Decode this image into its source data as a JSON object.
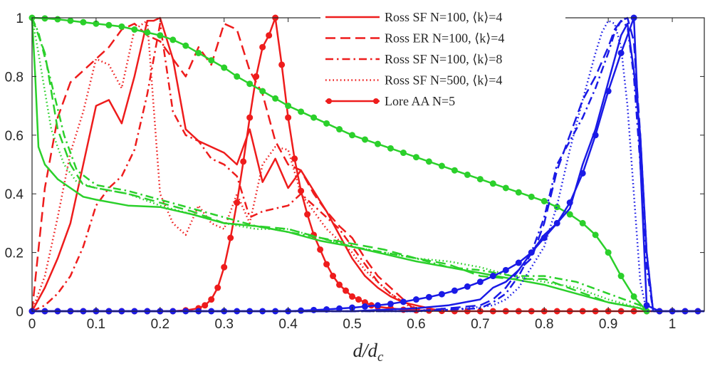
{
  "chart_data": {
    "type": "line",
    "title": "",
    "xlabel": "d/d_c",
    "ylabel": "",
    "xlim": [
      0,
      1.05
    ],
    "ylim": [
      0,
      1
    ],
    "xticks": [
      0,
      0.1,
      0.2,
      0.3,
      0.4,
      0.5,
      0.6,
      0.7,
      0.8,
      0.9,
      1
    ],
    "xtick_labels": [
      "0",
      "0.1",
      "0.2",
      "0.3",
      "0.4",
      "0.5",
      "0.6",
      "0.7",
      "0.8",
      "0.9",
      "1"
    ],
    "yticks": [
      0,
      0.2,
      0.4,
      0.6,
      0.8,
      1
    ],
    "ytick_labels": [
      "0",
      "0.2",
      "0.4",
      "0.6",
      "0.8",
      "1"
    ],
    "legend_position": "top-right",
    "colors": {
      "red": "#ee1c1c",
      "green": "#2bd02b",
      "blue": "#1a1ae6",
      "axis": "#262626"
    },
    "legend": [
      {
        "label": "Ross SF N=100, ⟨k⟩=4",
        "style": "solid",
        "marker": false
      },
      {
        "label": "Ross ER N=100, ⟨k⟩=4",
        "style": "dashed",
        "marker": false
      },
      {
        "label": "Ross SF N=100, ⟨k⟩=8",
        "style": "dashdot",
        "marker": false
      },
      {
        "label": "Ross SF N=500, ⟨k⟩=4",
        "style": "dotted",
        "marker": false
      },
      {
        "label": "Lore AA N=5",
        "style": "solid",
        "marker": true
      }
    ],
    "series": [
      {
        "name": "Ross SF N=100, <k>=4 (red)",
        "color": "red",
        "style": "solid",
        "x": [
          0,
          0.02,
          0.04,
          0.06,
          0.08,
          0.1,
          0.12,
          0.14,
          0.16,
          0.18,
          0.19,
          0.2,
          0.22,
          0.24,
          0.26,
          0.28,
          0.3,
          0.32,
          0.34,
          0.36,
          0.38,
          0.4,
          0.42,
          0.44,
          0.46,
          0.48,
          0.5,
          0.52,
          0.54,
          0.56,
          0.58,
          0.6,
          0.62,
          0.64
        ],
        "y": [
          0,
          0.08,
          0.18,
          0.3,
          0.5,
          0.7,
          0.72,
          0.64,
          0.8,
          0.99,
          0.99,
          1.0,
          0.86,
          0.62,
          0.58,
          0.56,
          0.54,
          0.5,
          0.62,
          0.44,
          0.52,
          0.42,
          0.48,
          0.41,
          0.34,
          0.26,
          0.18,
          0.12,
          0.08,
          0.05,
          0.03,
          0.02,
          0.01,
          0
        ]
      },
      {
        "name": "Ross ER N=100, <k>=4 (red)",
        "color": "red",
        "style": "dashed",
        "x": [
          0,
          0.02,
          0.04,
          0.06,
          0.08,
          0.1,
          0.12,
          0.14,
          0.16,
          0.18,
          0.2,
          0.22,
          0.24,
          0.26,
          0.28,
          0.3,
          0.32,
          0.34,
          0.36,
          0.38,
          0.4,
          0.42,
          0.44,
          0.46,
          0.48,
          0.5,
          0.52,
          0.54,
          0.56,
          0.58,
          0.6
        ],
        "y": [
          0,
          0.42,
          0.66,
          0.78,
          0.82,
          0.86,
          0.9,
          0.96,
          0.98,
          0.94,
          0.92,
          0.86,
          0.8,
          0.9,
          0.84,
          0.98,
          0.96,
          0.82,
          0.74,
          0.58,
          0.5,
          0.48,
          0.4,
          0.34,
          0.29,
          0.25,
          0.18,
          0.12,
          0.08,
          0.04,
          0
        ]
      },
      {
        "name": "Ross SF N=100, <k>=8 (red)",
        "color": "red",
        "style": "dashdot",
        "x": [
          0,
          0.02,
          0.04,
          0.06,
          0.08,
          0.1,
          0.12,
          0.14,
          0.16,
          0.18,
          0.2,
          0.22,
          0.24,
          0.26,
          0.28,
          0.3,
          0.32,
          0.34,
          0.36,
          0.38,
          0.4,
          0.42,
          0.44,
          0.46,
          0.48,
          0.5,
          0.52,
          0.54,
          0.56,
          0.58,
          0.6,
          0.62
        ],
        "y": [
          0,
          0.02,
          0.06,
          0.12,
          0.22,
          0.36,
          0.42,
          0.46,
          0.55,
          0.74,
          0.98,
          0.68,
          0.6,
          0.58,
          0.52,
          0.5,
          0.46,
          0.32,
          0.34,
          0.35,
          0.36,
          0.4,
          0.36,
          0.32,
          0.28,
          0.22,
          0.16,
          0.1,
          0.06,
          0.03,
          0.01,
          0
        ]
      },
      {
        "name": "Ross SF N=500, <k>=4 (red)",
        "color": "red",
        "style": "dotted",
        "x": [
          0,
          0.02,
          0.04,
          0.06,
          0.08,
          0.1,
          0.12,
          0.14,
          0.16,
          0.18,
          0.2,
          0.22,
          0.24,
          0.26,
          0.28,
          0.3,
          0.32,
          0.34,
          0.36,
          0.38,
          0.4,
          0.42,
          0.44,
          0.46,
          0.48,
          0.5,
          0.52,
          0.54,
          0.56,
          0.58,
          0.6
        ],
        "y": [
          0,
          0.12,
          0.32,
          0.54,
          0.68,
          0.86,
          0.84,
          0.76,
          0.96,
          0.99,
          0.4,
          0.3,
          0.26,
          0.36,
          0.3,
          0.28,
          0.4,
          0.3,
          0.5,
          0.56,
          0.55,
          0.4,
          0.34,
          0.28,
          0.24,
          0.2,
          0.14,
          0.1,
          0.06,
          0.03,
          0
        ]
      },
      {
        "name": "Lore AA N=5 (red)",
        "color": "red",
        "style": "solid",
        "marker": true,
        "x": [
          0,
          0.02,
          0.04,
          0.06,
          0.08,
          0.1,
          0.12,
          0.14,
          0.16,
          0.18,
          0.2,
          0.22,
          0.24,
          0.26,
          0.27,
          0.28,
          0.29,
          0.3,
          0.31,
          0.32,
          0.33,
          0.34,
          0.35,
          0.36,
          0.37,
          0.38,
          0.39,
          0.4,
          0.41,
          0.42,
          0.43,
          0.44,
          0.45,
          0.46,
          0.47,
          0.48,
          0.49,
          0.5,
          0.51,
          0.52,
          0.53,
          0.54,
          0.56,
          0.58,
          0.6,
          0.62,
          0.64,
          0.66,
          0.68,
          0.7,
          0.72,
          0.74,
          0.76,
          0.78,
          0.8,
          0.82,
          0.84,
          0.86,
          0.88,
          0.9,
          0.92,
          0.94,
          0.96,
          0.98,
          1.0,
          1.02,
          1.04
        ],
        "y": [
          0,
          0,
          0,
          0,
          0,
          0,
          0,
          0,
          0,
          0,
          0,
          0,
          0.003,
          0.01,
          0.02,
          0.04,
          0.08,
          0.15,
          0.25,
          0.37,
          0.51,
          0.66,
          0.8,
          0.9,
          0.94,
          1.0,
          0.84,
          0.66,
          0.52,
          0.41,
          0.33,
          0.26,
          0.21,
          0.16,
          0.12,
          0.09,
          0.07,
          0.05,
          0.04,
          0.03,
          0.02,
          0.015,
          0.01,
          0.005,
          0.003,
          0.002,
          0.001,
          0,
          0,
          0,
          0,
          0,
          0,
          0,
          0,
          0,
          0,
          0,
          0,
          0,
          0,
          0,
          0,
          0,
          0,
          0,
          0
        ]
      },
      {
        "name": "Ross SF N=100, <k>=4 (green)",
        "color": "green",
        "style": "solid",
        "x": [
          0,
          0.005,
          0.01,
          0.02,
          0.04,
          0.06,
          0.08,
          0.1,
          0.15,
          0.2,
          0.25,
          0.3,
          0.35,
          0.4,
          0.45,
          0.5,
          0.55,
          0.6,
          0.65,
          0.7,
          0.75,
          0.8,
          0.85,
          0.9,
          0.95,
          0.96
        ],
        "y": [
          1.0,
          0.8,
          0.56,
          0.5,
          0.45,
          0.42,
          0.39,
          0.38,
          0.36,
          0.355,
          0.33,
          0.3,
          0.29,
          0.27,
          0.24,
          0.22,
          0.195,
          0.17,
          0.15,
          0.13,
          0.11,
          0.09,
          0.06,
          0.03,
          0.01,
          0
        ]
      },
      {
        "name": "Ross ER N=100, <k>=4 (green)",
        "color": "green",
        "style": "dashed",
        "x": [
          0,
          0.02,
          0.04,
          0.06,
          0.08,
          0.1,
          0.15,
          0.2,
          0.25,
          0.3,
          0.35,
          0.4,
          0.45,
          0.5,
          0.55,
          0.6,
          0.65,
          0.7,
          0.75,
          0.8,
          0.85,
          0.9,
          0.95,
          0.96
        ],
        "y": [
          1.0,
          0.88,
          0.62,
          0.5,
          0.43,
          0.42,
          0.4,
          0.37,
          0.34,
          0.3,
          0.29,
          0.28,
          0.25,
          0.23,
          0.21,
          0.18,
          0.16,
          0.12,
          0.11,
          0.11,
          0.07,
          0.03,
          0.01,
          0
        ]
      },
      {
        "name": "Ross SF N=100, <k>=8 (green)",
        "color": "green",
        "style": "dashdot",
        "x": [
          0,
          0.01,
          0.03,
          0.05,
          0.07,
          0.1,
          0.15,
          0.2,
          0.25,
          0.3,
          0.35,
          0.4,
          0.45,
          0.5,
          0.55,
          0.6,
          0.65,
          0.7,
          0.75,
          0.8,
          0.85,
          0.9,
          0.95,
          0.96
        ],
        "y": [
          1.0,
          0.95,
          0.78,
          0.6,
          0.48,
          0.43,
          0.41,
          0.38,
          0.35,
          0.32,
          0.29,
          0.27,
          0.25,
          0.22,
          0.2,
          0.18,
          0.15,
          0.14,
          0.12,
          0.12,
          0.1,
          0.06,
          0.02,
          0
        ]
      },
      {
        "name": "Ross SF N=500, <k>=4 (green)",
        "color": "green",
        "style": "dotted",
        "x": [
          0,
          0.01,
          0.03,
          0.05,
          0.07,
          0.1,
          0.15,
          0.2,
          0.25,
          0.3,
          0.35,
          0.4,
          0.45,
          0.5,
          0.55,
          0.6,
          0.65,
          0.7,
          0.75,
          0.8,
          0.85,
          0.9,
          0.95,
          0.96
        ],
        "y": [
          1.0,
          0.88,
          0.62,
          0.5,
          0.44,
          0.42,
          0.4,
          0.36,
          0.33,
          0.3,
          0.28,
          0.28,
          0.25,
          0.22,
          0.2,
          0.18,
          0.17,
          0.15,
          0.12,
          0.1,
          0.08,
          0.04,
          0.01,
          0
        ]
      },
      {
        "name": "Lore AA N=5 (green)",
        "color": "green",
        "style": "solid",
        "marker": true,
        "x": [
          0,
          0.02,
          0.04,
          0.06,
          0.08,
          0.1,
          0.12,
          0.14,
          0.16,
          0.18,
          0.2,
          0.22,
          0.24,
          0.26,
          0.28,
          0.3,
          0.32,
          0.34,
          0.36,
          0.38,
          0.4,
          0.42,
          0.44,
          0.46,
          0.48,
          0.5,
          0.52,
          0.54,
          0.56,
          0.58,
          0.6,
          0.62,
          0.64,
          0.66,
          0.68,
          0.7,
          0.72,
          0.74,
          0.76,
          0.78,
          0.8,
          0.82,
          0.84,
          0.86,
          0.88,
          0.9,
          0.92,
          0.94,
          0.96
        ],
        "y": [
          1.0,
          0.998,
          0.995,
          0.99,
          0.985,
          0.98,
          0.975,
          0.97,
          0.96,
          0.95,
          0.94,
          0.925,
          0.905,
          0.88,
          0.855,
          0.83,
          0.8,
          0.775,
          0.75,
          0.725,
          0.7,
          0.68,
          0.66,
          0.64,
          0.62,
          0.6,
          0.585,
          0.57,
          0.555,
          0.54,
          0.525,
          0.51,
          0.495,
          0.48,
          0.465,
          0.45,
          0.435,
          0.42,
          0.405,
          0.39,
          0.375,
          0.355,
          0.33,
          0.3,
          0.26,
          0.2,
          0.12,
          0.05,
          0
        ]
      },
      {
        "name": "Ross SF N=100, <k>=4 (blue)",
        "color": "blue",
        "style": "solid",
        "x": [
          0,
          0.4,
          0.5,
          0.55,
          0.6,
          0.65,
          0.7,
          0.72,
          0.74,
          0.76,
          0.78,
          0.8,
          0.82,
          0.84,
          0.86,
          0.88,
          0.9,
          0.91,
          0.92,
          0.93,
          0.94,
          0.95,
          0.96,
          0.97,
          1.05
        ],
        "y": [
          0,
          0,
          0,
          0.005,
          0.01,
          0.02,
          0.04,
          0.08,
          0.1,
          0.14,
          0.2,
          0.26,
          0.3,
          0.35,
          0.5,
          0.62,
          0.78,
          0.86,
          0.94,
          0.98,
          0.82,
          0.6,
          0.2,
          0,
          0
        ]
      },
      {
        "name": "Ross ER N=100, <k>=4 (blue)",
        "color": "blue",
        "style": "dashed",
        "x": [
          0,
          0.6,
          0.65,
          0.7,
          0.72,
          0.74,
          0.76,
          0.78,
          0.8,
          0.82,
          0.84,
          0.86,
          0.88,
          0.9,
          0.91,
          0.92,
          0.93,
          0.94,
          0.95,
          0.96,
          0.97,
          1.05
        ],
        "y": [
          0,
          0,
          0.01,
          0.02,
          0.04,
          0.08,
          0.14,
          0.18,
          0.3,
          0.48,
          0.6,
          0.72,
          0.8,
          0.9,
          0.96,
          0.99,
          1.0,
          0.92,
          0.6,
          0.2,
          0,
          0
        ]
      },
      {
        "name": "Ross SF N=100, <k>=8 (blue)",
        "color": "blue",
        "style": "dashdot",
        "x": [
          0,
          0.6,
          0.65,
          0.7,
          0.72,
          0.74,
          0.76,
          0.78,
          0.8,
          0.82,
          0.84,
          0.86,
          0.88,
          0.9,
          0.91,
          0.92,
          0.93,
          0.94,
          0.95,
          0.96,
          0.97,
          1.05
        ],
        "y": [
          0,
          0,
          0.005,
          0.01,
          0.03,
          0.06,
          0.12,
          0.2,
          0.32,
          0.5,
          0.58,
          0.66,
          0.76,
          0.88,
          0.95,
          0.99,
          0.97,
          0.8,
          0.5,
          0.15,
          0,
          0
        ]
      },
      {
        "name": "Ross SF N=500, <k>=4 (blue)",
        "color": "blue",
        "style": "dotted",
        "x": [
          0,
          0.62,
          0.68,
          0.72,
          0.74,
          0.76,
          0.78,
          0.8,
          0.82,
          0.84,
          0.86,
          0.88,
          0.89,
          0.9,
          0.91,
          0.92,
          0.93,
          0.94,
          0.95,
          0.96,
          1.05
        ],
        "y": [
          0,
          0,
          0.01,
          0.02,
          0.04,
          0.08,
          0.15,
          0.22,
          0.36,
          0.55,
          0.72,
          0.88,
          0.95,
          0.99,
          0.98,
          0.9,
          0.7,
          0.4,
          0.1,
          0,
          0
        ]
      },
      {
        "name": "Lore AA N=5 (blue)",
        "color": "blue",
        "style": "solid",
        "marker": true,
        "x": [
          0,
          0.02,
          0.04,
          0.06,
          0.08,
          0.1,
          0.12,
          0.14,
          0.16,
          0.18,
          0.2,
          0.22,
          0.24,
          0.26,
          0.28,
          0.3,
          0.32,
          0.34,
          0.36,
          0.38,
          0.4,
          0.42,
          0.44,
          0.46,
          0.48,
          0.5,
          0.52,
          0.54,
          0.56,
          0.58,
          0.6,
          0.62,
          0.64,
          0.66,
          0.68,
          0.7,
          0.72,
          0.74,
          0.76,
          0.78,
          0.8,
          0.82,
          0.84,
          0.86,
          0.88,
          0.9,
          0.92,
          0.94,
          0.96,
          0.98,
          1.0,
          1.02,
          1.04
        ],
        "y": [
          0,
          0,
          0,
          0,
          0,
          0,
          0,
          0,
          0,
          0,
          0,
          0,
          0,
          0,
          0,
          0,
          0,
          0,
          0,
          0,
          0,
          0.002,
          0.004,
          0.006,
          0.009,
          0.012,
          0.016,
          0.02,
          0.025,
          0.032,
          0.04,
          0.048,
          0.058,
          0.07,
          0.084,
          0.1,
          0.12,
          0.14,
          0.165,
          0.2,
          0.25,
          0.3,
          0.37,
          0.47,
          0.6,
          0.75,
          0.88,
          1.0,
          0.02,
          0,
          0,
          0,
          0
        ]
      }
    ]
  }
}
